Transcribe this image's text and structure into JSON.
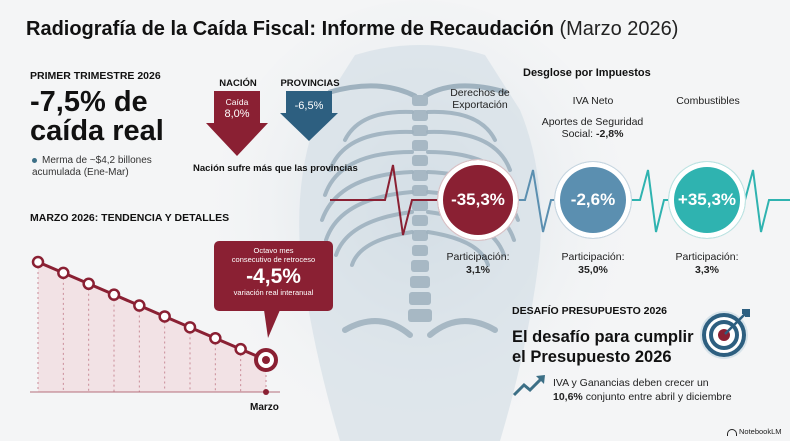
{
  "header": {
    "title": "Radiografía de la Caída Fiscal: Informe de Recaudación",
    "date": "(Marzo 2026)"
  },
  "q1": {
    "label": "PRIMER TRIMESTRE 2026",
    "stat_line1": "-7,5% de",
    "stat_line2": "caída real",
    "note": "Merma de ~$4,2 billones acumulada (Ene-Mar)"
  },
  "comparison": {
    "nation_label": "NACIÓN",
    "nation_sub": "Caída",
    "nation_value": "8,0%",
    "provinces_label": "PROVINCIAS",
    "provinces_value": "-6,5%",
    "caption": "Nación sufre más que las provincias"
  },
  "breakdown": {
    "heading": "Desglose por Impuestos",
    "taxes": [
      {
        "name_line1": "Derechos de",
        "name_line2": "Exportación",
        "value": "-35,3%",
        "share_label": "Participación:",
        "share_value": "3,1%",
        "color": "#8a2033"
      },
      {
        "name_line1": "IVA Neto",
        "name_line2": "",
        "value": "-2,6%",
        "share_label": "Participación:",
        "share_value": "35,0%",
        "color": "#5b8fb0"
      },
      {
        "name_line1": "Combustibles",
        "name_line2": "",
        "value": "+35,3%",
        "share_label": "Participación:",
        "share_value": "3,3%",
        "color": "#2fb3b0"
      }
    ],
    "extra_line1": "Aportes de Seguridad",
    "extra_line2_prefix": "Social:",
    "extra_value": "-2,8%"
  },
  "trend": {
    "heading": "MARZO 2026: TENDENCIA Y DETALLES",
    "callout_line1": "Octavo mes",
    "callout_line2": "consecutivo de retroceso",
    "callout_value": "-4,5%",
    "callout_foot": "variación real interanual",
    "month_label": "Marzo",
    "levels": [
      10,
      9,
      8,
      7,
      6,
      5,
      4,
      3,
      2,
      1
    ]
  },
  "challenge": {
    "heading": "DESAFÍO PRESUPUESTO 2026",
    "title_line1": "El desafío para cumplir",
    "title_line2": "el Presupuesto 2026",
    "text_prefix": "IVA y Ganancias deben crecer un",
    "text_bold": "10,6%",
    "text_suffix": "conjunto entre abril y diciembre"
  },
  "brand": "NotebookLM",
  "colors": {
    "accent_red": "#8a2033",
    "accent_blue": "#3c6f86",
    "accent_teal": "#2fb3b0"
  },
  "icons": [
    "down-arrow-icon",
    "target-icon",
    "trend-up-icon",
    "notebooklm-logo-icon"
  ]
}
